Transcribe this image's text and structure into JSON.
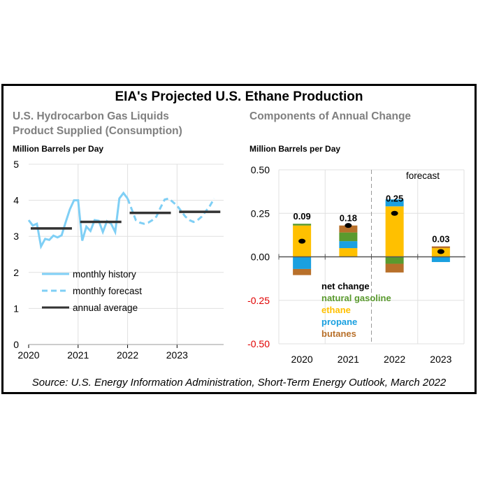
{
  "title": "EIA's Projected U.S. Ethane Production",
  "source": "Source: U.S. Energy Information Administration, Short-Term Energy Outlook, March 2022",
  "colors": {
    "history": "#7fcff5",
    "forecast": "#7fcff5",
    "annual": "#333333",
    "natural_gasoline": "#5a9a2e",
    "ethane": "#ffc000",
    "propane": "#1aa0e0",
    "butanes": "#b8702a",
    "net_change": "#000000",
    "negative_tick": "#e00000"
  },
  "chart_data": [
    {
      "type": "line",
      "subtitle_line1": "U.S. Hydrocarbon Gas Liquids",
      "subtitle_line2": "Product Supplied (Consumption)",
      "ylabel": "Million Barrels per Day",
      "ylim": [
        0,
        5
      ],
      "yticks": [
        "0",
        "1",
        "2",
        "3",
        "4",
        "5"
      ],
      "xticks": [
        "2020",
        "2021",
        "2022",
        "2023"
      ],
      "grid": true,
      "legend": [
        "monthly history",
        "monthly forecast",
        "annual average"
      ],
      "legend_placement": "lower-left",
      "series": [
        {
          "name": "monthly history",
          "start": "2020-01",
          "values": [
            3.45,
            3.3,
            3.35,
            2.72,
            2.93,
            2.9,
            3.02,
            2.97,
            3.03,
            3.4,
            3.75,
            4.0,
            4.0,
            2.88,
            3.27,
            3.15,
            3.45,
            3.43,
            3.12,
            3.42,
            3.35,
            3.12,
            4.05,
            4.2,
            4.05
          ]
        },
        {
          "name": "monthly forecast",
          "start": "2022-01",
          "values": [
            4.05,
            3.75,
            3.45,
            3.38,
            3.35,
            3.38,
            3.45,
            3.55,
            3.8,
            4.02,
            4.05,
            3.95,
            3.85,
            3.7,
            3.55,
            3.45,
            3.4,
            3.45,
            3.55,
            3.7,
            3.85,
            4.05
          ]
        },
        {
          "name": "annual average",
          "years": [
            "2020",
            "2021",
            "2022",
            "2023"
          ],
          "values": [
            3.22,
            3.4,
            3.65,
            3.68
          ]
        }
      ]
    },
    {
      "type": "bar",
      "stacked": true,
      "subtitle": "Components of Annual Change",
      "ylabel": "Million Barrels per Day",
      "ylim": [
        -0.5,
        0.5
      ],
      "yticks": [
        "-0.50",
        "-0.25",
        "0.00",
        "0.25",
        "0.50"
      ],
      "categories": [
        "2020",
        "2021",
        "2022",
        "2023"
      ],
      "annotation": "forecast",
      "grid": true,
      "legend_placement": "bottom-center",
      "series": [
        {
          "name": "natural gasoline",
          "values": [
            0.01,
            0.05,
            -0.04,
            0.0
          ]
        },
        {
          "name": "ethane",
          "values": [
            0.18,
            0.05,
            0.29,
            0.05
          ]
        },
        {
          "name": "propane",
          "values": [
            -0.07,
            0.04,
            0.04,
            -0.03
          ]
        },
        {
          "name": "butanes",
          "values": [
            -0.035,
            0.04,
            -0.05,
            0.01
          ]
        }
      ],
      "net_change": {
        "name": "net change",
        "values": [
          0.09,
          0.18,
          0.25,
          0.03
        ],
        "labels": [
          "0.09",
          "0.18",
          "0.25",
          "0.03"
        ]
      }
    }
  ]
}
